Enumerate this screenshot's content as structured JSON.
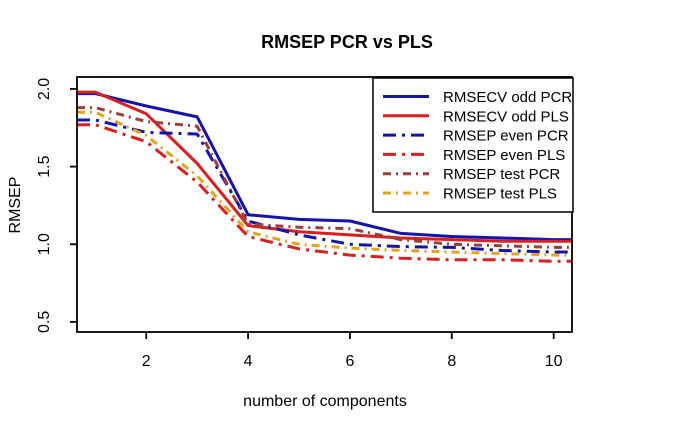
{
  "title": "RMSEP PCR vs PLS",
  "x_axis": {
    "label": "number of components",
    "ticks": [
      2,
      4,
      6,
      8,
      10
    ]
  },
  "y_axis": {
    "label": "RMSEP",
    "ticks": [
      "0.5",
      "1.0",
      "1.5",
      "2.0"
    ]
  },
  "colors": {
    "pcr_blue": "#1414AD",
    "pls_red": "#DA1F1F",
    "test_pcr_darkred": "#9C3F3A",
    "test_pls_orange": "#E3A41D",
    "axis_black": "#000000",
    "background": "#FFFFFF"
  },
  "chart_data": {
    "type": "line",
    "title": "RMSEP PCR vs PLS",
    "xlabel": "number of components",
    "ylabel": "RMSEP",
    "x": [
      1,
      2,
      3,
      4,
      5,
      6,
      7,
      8,
      9,
      10
    ],
    "xlim": [
      0.64,
      10.36
    ],
    "ylim": [
      0.435,
      2.077
    ],
    "x_ticks": [
      2,
      4,
      6,
      8,
      10
    ],
    "y_ticks": [
      0.5,
      1.0,
      1.5,
      2.0
    ],
    "grid": false,
    "legend_position": "topright",
    "clip_extend_to_box_edges": true,
    "series": [
      {
        "name": "RMSECV odd PCR",
        "color": "#1414AD",
        "dash": "solid",
        "values": [
          1.97,
          1.89,
          1.82,
          1.19,
          1.16,
          1.15,
          1.07,
          1.05,
          1.04,
          1.03
        ]
      },
      {
        "name": "RMSECV odd PLS",
        "color": "#DA1F1F",
        "dash": "solid",
        "values": [
          1.98,
          1.84,
          1.52,
          1.12,
          1.08,
          1.06,
          1.04,
          1.03,
          1.02,
          1.02
        ]
      },
      {
        "name": "RMSEP even PCR",
        "color": "#1414AD",
        "dash": "long-dashdot",
        "values": [
          1.8,
          1.72,
          1.71,
          1.15,
          1.06,
          1.0,
          0.985,
          0.98,
          0.96,
          0.95
        ]
      },
      {
        "name": "RMSEP even PLS",
        "color": "#DA1F1F",
        "dash": "long-dashdot",
        "values": [
          1.77,
          1.66,
          1.4,
          1.05,
          0.97,
          0.93,
          0.91,
          0.9,
          0.9,
          0.89
        ]
      },
      {
        "name": "RMSEP test PCR",
        "color": "#9C3F3A",
        "dash": "short-dashdot",
        "values": [
          1.88,
          1.79,
          1.76,
          1.13,
          1.11,
          1.1,
          1.03,
          1.0,
          0.99,
          0.98
        ]
      },
      {
        "name": "RMSEP test PLS",
        "color": "#E3A41D",
        "dash": "short-dashdot",
        "values": [
          1.85,
          1.7,
          1.44,
          1.08,
          1.0,
          0.975,
          0.96,
          0.95,
          0.94,
          0.93
        ]
      }
    ]
  }
}
